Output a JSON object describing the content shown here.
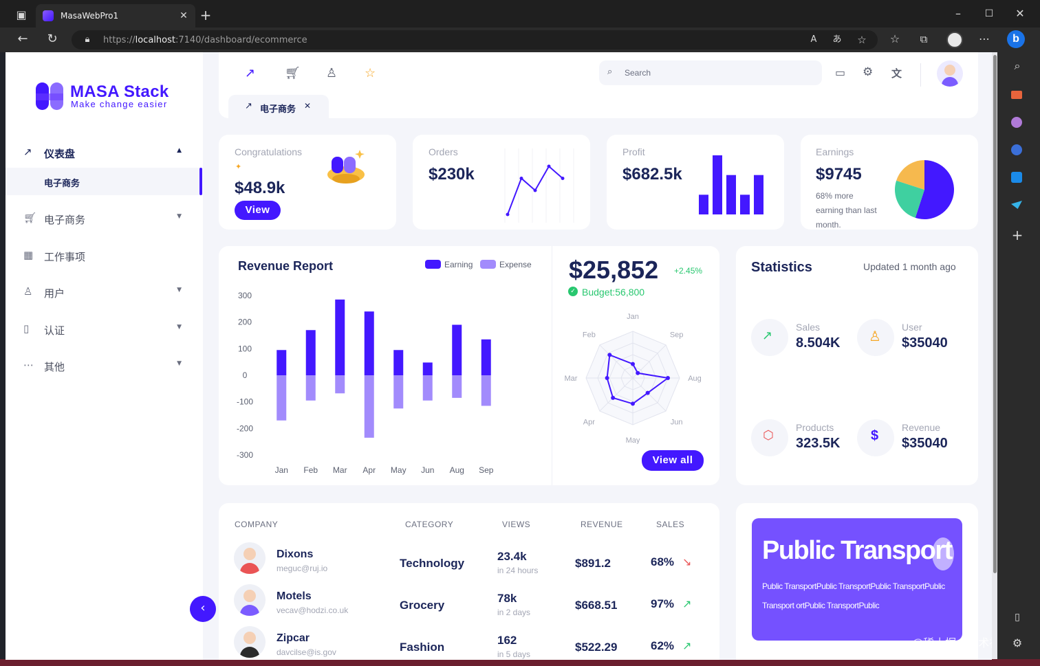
{
  "browser": {
    "tab_title": "MasaWebPro1",
    "url_scheme": "https://",
    "url_host": "localhost",
    "url_rest": ":7140/dashboard/ecommerce"
  },
  "sidebar": {
    "logo_title": "MASA Stack",
    "logo_subtitle": "Make change easier",
    "items": [
      {
        "label": "仪表盘",
        "icon": "trending-up-icon",
        "expanded": true
      },
      {
        "label": "电子商务",
        "icon": "cart-icon"
      },
      {
        "label": "工作事项",
        "icon": "calendar-icon"
      },
      {
        "label": "用户",
        "icon": "user-icon"
      },
      {
        "label": "认证",
        "icon": "file-icon"
      },
      {
        "label": "其他",
        "icon": "more-icon"
      }
    ],
    "sub_item": "电子商务"
  },
  "topbar": {
    "search_placeholder": "Search",
    "active_tab": "电子商务"
  },
  "cards": {
    "congrats": {
      "title": "Congratulations",
      "value": "$48.9k",
      "button": "View"
    },
    "orders": {
      "title": "Orders",
      "value": "$230k"
    },
    "profit": {
      "title": "Profit",
      "value": "$682.5k"
    },
    "earnings": {
      "title": "Earnings",
      "value": "$9745",
      "line1": "68% more",
      "line2": "earning than last",
      "line3": "month."
    }
  },
  "revenue": {
    "title": "Revenue Report",
    "legend_earning": "Earning",
    "legend_expense": "Expense",
    "total": "$25,852",
    "change": "+2.45%",
    "budget": "Budget:56,800",
    "button": "View all"
  },
  "chart_data": [
    {
      "type": "bar",
      "title": "Revenue Report",
      "categories": [
        "Jan",
        "Feb",
        "Mar",
        "Apr",
        "May",
        "Jun",
        "Aug",
        "Sep"
      ],
      "ylim": [
        -300,
        300
      ],
      "yticks": [
        300,
        200,
        100,
        0,
        -100,
        -200,
        -300
      ],
      "series": [
        {
          "name": "Earning",
          "values": [
            95,
            170,
            285,
            240,
            95,
            48,
            190,
            135
          ]
        },
        {
          "name": "Expense",
          "values": [
            -170,
            -95,
            -68,
            -235,
            -125,
            -95,
            -85,
            -115
          ]
        }
      ],
      "colors": {
        "Earning": "#4318ff",
        "Expense": "#a28bfc"
      },
      "legend": "top-right"
    },
    {
      "type": "line",
      "title": "",
      "axes": [
        "Jan",
        "Sep",
        "Aug",
        "Jun",
        "May",
        "Apr",
        "Mar",
        "Feb"
      ],
      "axis_labels_shown": [
        "Jan",
        "Sep",
        "Aug",
        "Jun",
        "May",
        "Apr",
        "Mar",
        "Feb"
      ],
      "values": [
        0.3,
        0.15,
        0.75,
        0.45,
        0.55,
        0.6,
        0.55,
        0.7
      ],
      "color": "#4318ff"
    },
    {
      "type": "line",
      "values": [
        0,
        3,
        2,
        4,
        3
      ]
    },
    {
      "type": "bar",
      "values": [
        3,
        9,
        6,
        3,
        6
      ]
    },
    {
      "type": "pie",
      "values": [
        55,
        25,
        20
      ],
      "colors": [
        "#4318ff",
        "#3fd0a0",
        "#f6b94e"
      ]
    }
  ],
  "statistics": {
    "title": "Statistics",
    "updated": "Updated 1 month ago",
    "items": [
      {
        "label": "Sales",
        "value": "8.504K",
        "icon": "trending-up-icon",
        "color": "#28c76f"
      },
      {
        "label": "User",
        "value": "$35040",
        "icon": "user-icon",
        "color": "#f6a623"
      },
      {
        "label": "Products",
        "value": "323.5K",
        "icon": "box-icon",
        "color": "#ea5455"
      },
      {
        "label": "Revenue",
        "value": "$35040",
        "icon": "dollar-icon",
        "color": "#4318ff"
      }
    ]
  },
  "table": {
    "headers": [
      "COMPANY",
      "CATEGORY",
      "VIEWS",
      "REVENUE",
      "SALES"
    ],
    "rows": [
      {
        "name": "Dixons",
        "email": "meguc@ruj.io",
        "category": "Technology",
        "views": "23.4k",
        "views_sub": "in 24 hours",
        "revenue": "$891.2",
        "sales": "68%",
        "trend": "down"
      },
      {
        "name": "Motels",
        "email": "vecav@hodzi.co.uk",
        "category": "Grocery",
        "views": "78k",
        "views_sub": "in 2 days",
        "revenue": "$668.51",
        "sales": "97%",
        "trend": "up"
      },
      {
        "name": "Zipcar",
        "email": "davcilse@is.gov",
        "category": "Fashion",
        "views": "162",
        "views_sub": "in 5 days",
        "revenue": "$522.29",
        "sales": "62%",
        "trend": "up"
      }
    ]
  },
  "promo": {
    "title": "Public Transport",
    "line1": "Public TransportPublic TransportPublic TransportPublic",
    "line2": "Transport ortPublic TransportPublic",
    "watermark": "@稀土掘金技术社区"
  },
  "colors": {
    "accent": "#4318ff",
    "page_bg": "#f4f5fa",
    "text_dark": "#1b2559",
    "muted": "#a3a6b4"
  }
}
